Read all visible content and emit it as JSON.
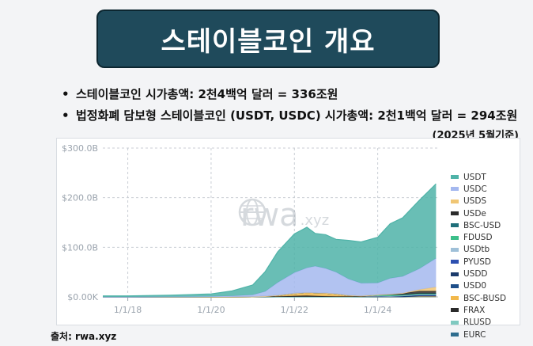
{
  "title": "스테이블코인 개요",
  "bullets": [
    "스테이블코인 시가총액: 2천4백억 달러 = 336조원",
    "법정화폐 담보형 스테이블코인 (USDT, USDC) 시가총액: 2천1백억 달러 = 294조원"
  ],
  "basis_note": "(2025년 5월기준)",
  "source": "출처: rwa.xyz",
  "watermark": {
    "text": "rwa",
    "sub": ".xyz",
    "icon": "globe-icon"
  },
  "chart_data": {
    "type": "area",
    "stacked": true,
    "x_ticks": [
      "1/1/18",
      "1/1/20",
      "1/1/22",
      "1/1/24"
    ],
    "x_range": [
      "2017-05",
      "2025-05"
    ],
    "y_ticks": [
      "$0.00K",
      "$100.0B",
      "$200.0B",
      "$300.0B"
    ],
    "ylim": [
      0,
      300
    ],
    "y_unit": "B USD",
    "grid": true,
    "legend_position": "right",
    "x_years": [
      2017.4,
      2018.0,
      2019.0,
      2019.5,
      2020.0,
      2020.5,
      2021.0,
      2021.3,
      2021.6,
      2022.0,
      2022.3,
      2022.5,
      2022.75,
      2023.0,
      2023.3,
      2023.6,
      2024.0,
      2024.3,
      2024.6,
      2025.0,
      2025.4
    ],
    "series": [
      {
        "name": "USDT",
        "color": "#4fb3a8",
        "values": [
          2,
          2,
          3,
          4,
          5,
          10,
          20,
          40,
          62,
          78,
          82,
          66,
          68,
          66,
          78,
          83,
          92,
          110,
          118,
          138,
          150
        ]
      },
      {
        "name": "USDC",
        "color": "#a4b8ef",
        "values": [
          0,
          0,
          0.4,
          0.6,
          1,
          2,
          4,
          10,
          26,
          42,
          50,
          54,
          50,
          44,
          33,
          26,
          24,
          32,
          34,
          42,
          58
        ]
      },
      {
        "name": "USDS",
        "color": "#f0c674",
        "values": [
          0,
          0,
          0,
          0,
          0,
          0,
          0,
          0,
          0,
          0,
          0,
          0,
          0,
          0,
          0,
          0,
          0,
          0,
          0,
          3,
          8
        ]
      },
      {
        "name": "USDe",
        "color": "#2b2b2b",
        "values": [
          0,
          0,
          0,
          0,
          0,
          0,
          0,
          0,
          0,
          0,
          0,
          0,
          0,
          0,
          0,
          0,
          0,
          1,
          3,
          5,
          5
        ]
      },
      {
        "name": "BSC-USD",
        "color": "#1f6f7a",
        "values": [
          0,
          0,
          0,
          0,
          0,
          0,
          0,
          0,
          0,
          0,
          0,
          0,
          0,
          0,
          0,
          0,
          0,
          0,
          0,
          0,
          0
        ]
      },
      {
        "name": "FDUSD",
        "color": "#3cbf8a",
        "values": [
          0,
          0,
          0,
          0,
          0,
          0,
          0,
          0,
          0,
          0,
          0,
          0,
          0,
          0,
          0,
          0,
          2,
          3,
          2,
          2,
          2
        ]
      },
      {
        "name": "USDtb",
        "color": "#9fc0d8",
        "values": [
          0,
          0,
          0,
          0,
          0,
          0,
          0,
          0,
          0,
          0,
          0,
          0,
          0,
          0,
          0,
          0,
          0,
          0,
          0,
          1,
          1
        ]
      },
      {
        "name": "PYUSD",
        "color": "#2d4fb0",
        "values": [
          0,
          0,
          0,
          0,
          0,
          0,
          0,
          0,
          0,
          0,
          0,
          0,
          0,
          0,
          0,
          0,
          0,
          0,
          1,
          1,
          1
        ]
      },
      {
        "name": "USDD",
        "color": "#1a3a6b",
        "values": [
          0,
          0,
          0,
          0,
          0,
          0,
          0,
          0,
          0,
          0,
          0,
          0,
          0,
          0,
          0,
          0,
          1,
          1,
          1,
          1,
          1
        ]
      },
      {
        "name": "USD0",
        "color": "#1e4f8a",
        "values": [
          0,
          0,
          0,
          0,
          0,
          0,
          0,
          0,
          0,
          0,
          0,
          0,
          0,
          0,
          0,
          0,
          0,
          0,
          0,
          1,
          1
        ]
      },
      {
        "name": "BSC-BUSD",
        "color": "#f2b84b",
        "values": [
          0,
          0,
          0,
          0,
          0,
          0,
          0,
          0.5,
          2,
          5,
          6,
          6,
          6,
          5,
          2,
          1,
          0.5,
          0,
          0,
          0,
          0
        ]
      },
      {
        "name": "FRAX",
        "color": "#2a2a2a",
        "values": [
          0,
          0,
          0,
          0,
          0,
          0,
          0.1,
          0.5,
          1,
          2,
          2.5,
          2,
          1.5,
          1,
          1,
          0.8,
          0.6,
          0.5,
          0.4,
          0.3,
          0.3
        ]
      },
      {
        "name": "RLUSD",
        "color": "#7fc9c0",
        "values": [
          0,
          0,
          0,
          0,
          0,
          0,
          0,
          0,
          0,
          0,
          0,
          0,
          0,
          0,
          0,
          0,
          0,
          0,
          0,
          0.3,
          0.3
        ]
      },
      {
        "name": "EURC",
        "color": "#2f6d8e",
        "values": [
          0,
          0,
          0,
          0,
          0,
          0,
          0,
          0,
          0,
          0,
          0,
          0,
          0,
          0,
          0,
          0,
          0,
          0,
          0,
          0.2,
          0.2
        ]
      }
    ]
  }
}
